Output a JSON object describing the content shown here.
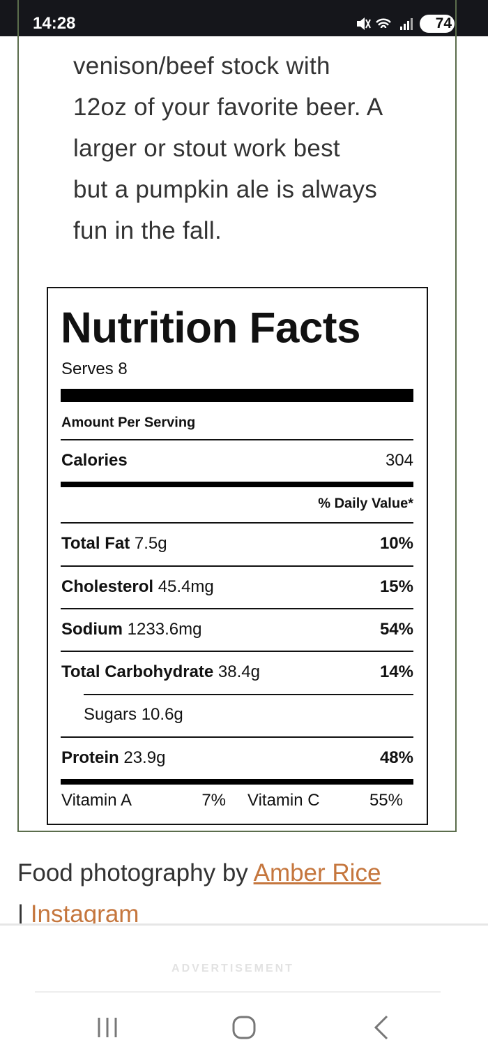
{
  "status_bar": {
    "time": "14:28",
    "battery": "74"
  },
  "recipe_text": [
    "venison/beef stock with",
    "12oz of your favorite beer. A",
    "larger or stout work best",
    "but a pumpkin ale is always",
    "fun in the fall."
  ],
  "nutrition": {
    "title": "Nutrition Facts",
    "serves": "Serves 8",
    "amount_per_serving": "Amount Per Serving",
    "calories": {
      "label": "Calories",
      "value": "304"
    },
    "daily_value_header": "% Daily Value*",
    "rows": [
      {
        "name": "Total Fat",
        "amount": "7.5g",
        "dv": "10%"
      },
      {
        "name": "Cholesterol",
        "amount": "45.4mg",
        "dv": "15%"
      },
      {
        "name": "Sodium",
        "amount": "1233.6mg",
        "dv": "54%"
      },
      {
        "name": "Total Carbohydrate",
        "amount": "38.4g",
        "dv": "14%"
      }
    ],
    "sugars": "Sugars 10.6g",
    "protein": {
      "name": "Protein",
      "amount": "23.9g",
      "dv": "48%"
    },
    "vitamins": [
      {
        "name": "Vitamin A",
        "dv": "7%"
      },
      {
        "name": "Vitamin C",
        "dv": "55%"
      }
    ]
  },
  "credit": {
    "text": "Food photography by",
    "link1": "Amber Rice",
    "separator": "|",
    "link2": "Instagram"
  },
  "advertisement": "ADVERTISEMENT"
}
